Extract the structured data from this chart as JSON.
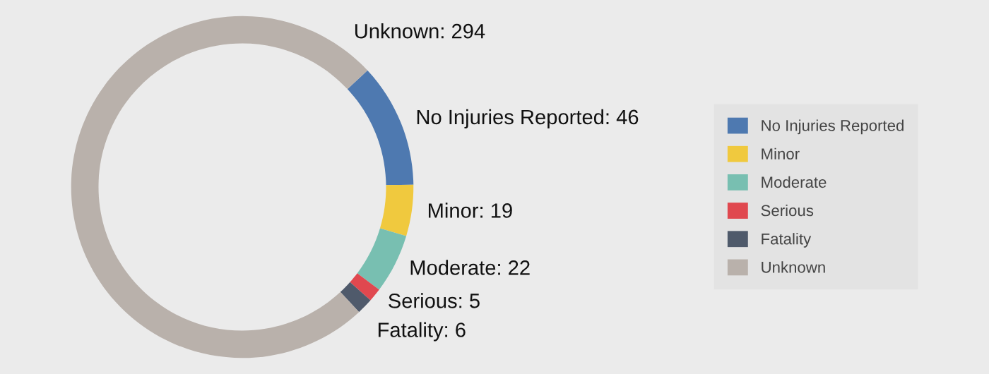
{
  "chart_data": {
    "type": "donut",
    "categories": [
      "No Injuries Reported",
      "Minor",
      "Moderate",
      "Serious",
      "Fatality",
      "Unknown"
    ],
    "values": [
      46,
      19,
      22,
      5,
      6,
      294
    ],
    "colors": [
      "#4e79b0",
      "#f0c93e",
      "#78bfb1",
      "#e0484f",
      "#4f5a6b",
      "#b9b1ab"
    ],
    "value_labels": [
      "No Injuries Reported: 46",
      "Minor: 19",
      "Moderate: 22",
      "Serious: 5",
      "Fatality: 6",
      "Unknown: 294"
    ],
    "legend": "right"
  }
}
